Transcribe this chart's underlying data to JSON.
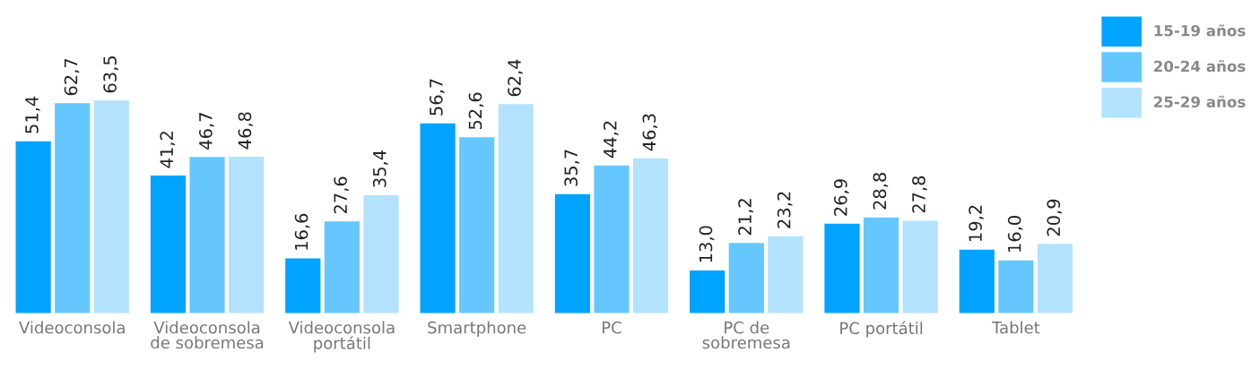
{
  "chart_data": {
    "type": "bar",
    "categories": [
      "Videoconsola",
      "Videoconsola\nde sobremesa",
      "Videoconsola\nportátil",
      "Smartphone",
      "PC",
      "PC de\nsobremesa",
      "PC portátil",
      "Tablet"
    ],
    "series": [
      {
        "name": "15-19 años",
        "color": "#00a3ff",
        "values": [
          51.4,
          41.2,
          16.6,
          56.7,
          35.7,
          13.0,
          26.9,
          19.2
        ],
        "value_labels": [
          "51,4",
          "41,2",
          "16,6",
          "56,7",
          "35,7",
          "13,0",
          "26,9",
          "19,2"
        ]
      },
      {
        "name": "20-24 años",
        "color": "#66c7ff",
        "values": [
          62.7,
          46.7,
          27.6,
          52.6,
          44.2,
          21.2,
          28.8,
          16.0
        ],
        "value_labels": [
          "62,7",
          "46,7",
          "27,6",
          "52,6",
          "44,2",
          "21,2",
          "28,8",
          "16,0"
        ]
      },
      {
        "name": "25-29 años",
        "color": "#b3e2ff",
        "values": [
          63.5,
          46.8,
          35.4,
          62.4,
          46.3,
          23.2,
          27.8,
          20.9
        ],
        "value_labels": [
          "63,5",
          "46,8",
          "35,4",
          "62,4",
          "46,3",
          "23,2",
          "27,8",
          "20,9"
        ]
      }
    ],
    "legend": "top right",
    "grid": false
  }
}
